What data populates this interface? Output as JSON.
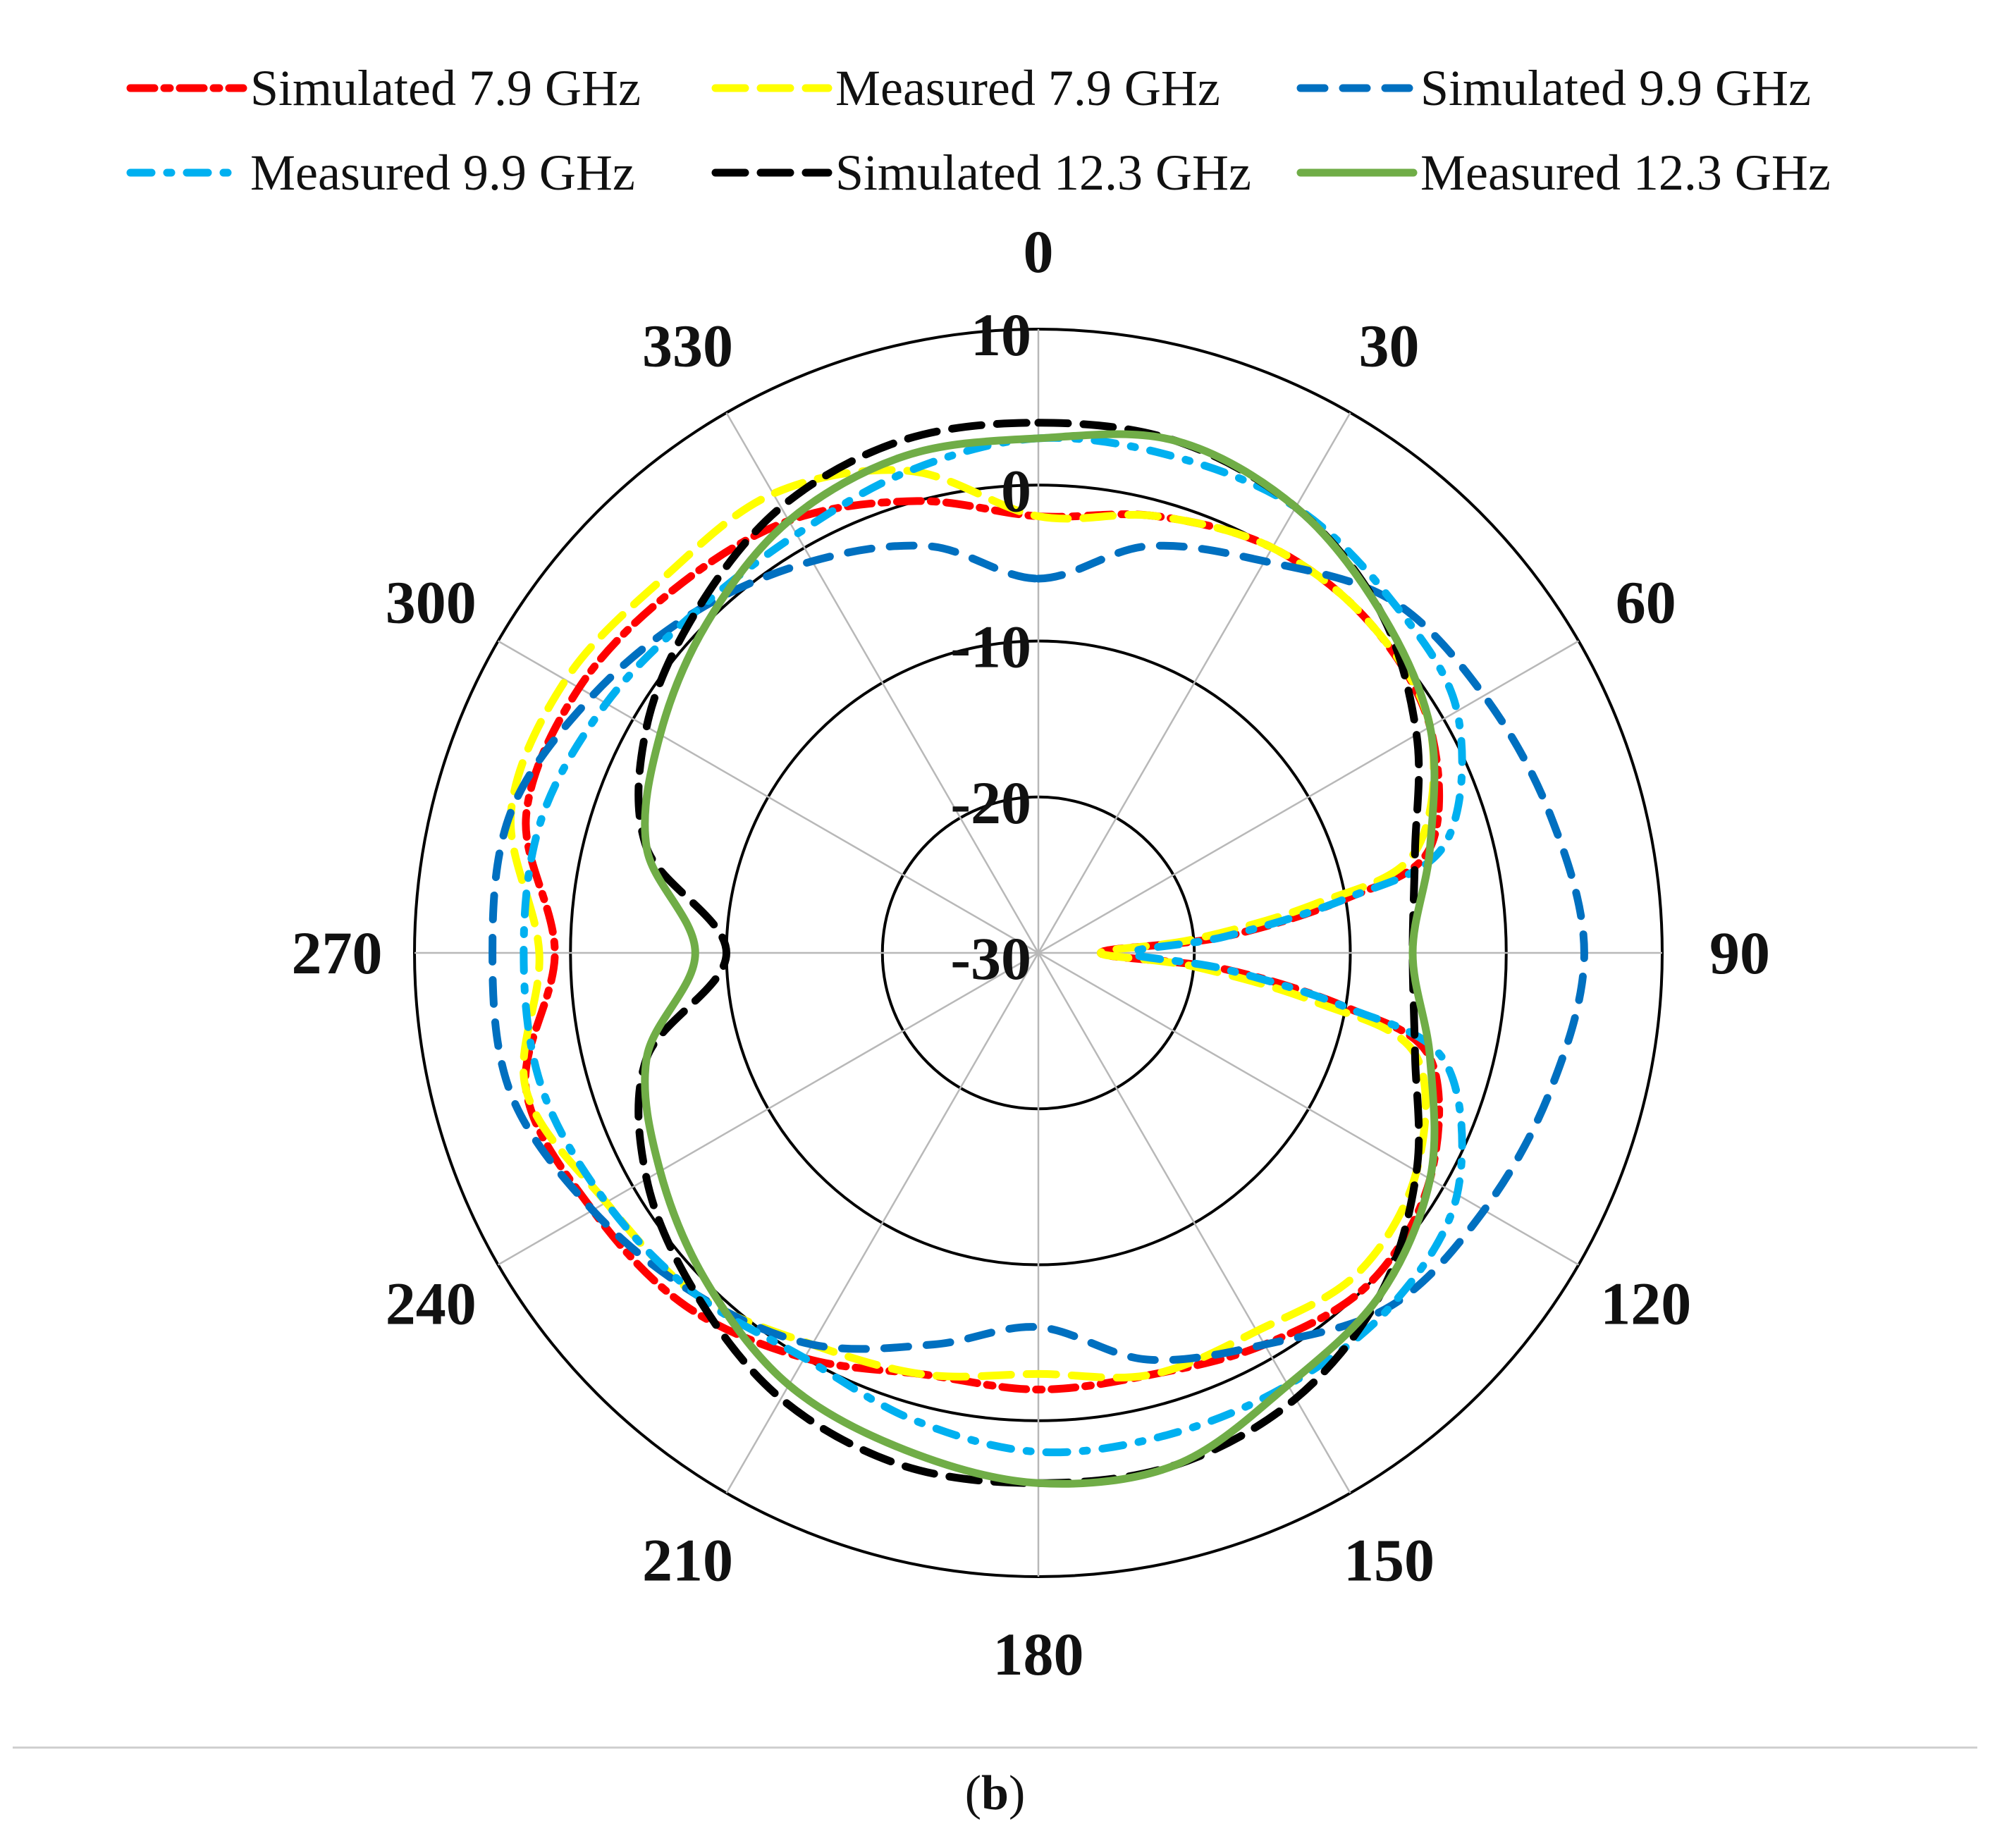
{
  "caption": {
    "open": "(",
    "letter": "b",
    "close": ")"
  },
  "chart_data": {
    "type": "polar-line",
    "title": "",
    "angle_labels": [
      "0",
      "30",
      "60",
      "90",
      "120",
      "150",
      "180",
      "210",
      "240",
      "270",
      "300",
      "330"
    ],
    "angles_deg": [
      0,
      30,
      60,
      90,
      120,
      150,
      180,
      210,
      240,
      270,
      300,
      330
    ],
    "radial_labels": [
      "10",
      "0",
      "-10",
      "-20",
      "-30"
    ],
    "radial_values": [
      10,
      0,
      -10,
      -20,
      -30
    ],
    "radial_range": [
      -30,
      10
    ],
    "unit_hint": "",
    "legend_position": "top",
    "series": [
      {
        "name": "Simulated 7.9 GHz",
        "color": "#ff0000",
        "dash": "long-dash-dot",
        "angles": [
          0,
          15,
          30,
          45,
          60,
          75,
          80,
          85,
          90,
          95,
          100,
          105,
          120,
          135,
          150,
          165,
          180,
          195,
          210,
          225,
          240,
          255,
          270,
          285,
          300,
          315,
          330,
          345
        ],
        "values": [
          -2,
          -1,
          0,
          0,
          -1,
          -4,
          -10,
          -18,
          -26,
          -18,
          -10,
          -4,
          -1,
          0,
          -1,
          -2,
          -2,
          -2,
          0,
          2,
          3,
          4,
          1,
          4,
          4,
          3,
          2,
          0
        ]
      },
      {
        "name": "Measured 7.9 GHz",
        "color": "#ffff00",
        "dash": "long-dash",
        "angles": [
          0,
          15,
          30,
          45,
          60,
          75,
          80,
          85,
          90,
          95,
          100,
          105,
          120,
          135,
          150,
          165,
          180,
          195,
          210,
          225,
          240,
          255,
          270,
          285,
          300,
          315,
          330,
          345
        ],
        "values": [
          -2,
          -1,
          0,
          0,
          -1,
          -5,
          -12,
          -20,
          -26,
          -20,
          -12,
          -5,
          -2,
          -1,
          -2,
          -2,
          -3,
          -2,
          -1,
          1,
          2,
          4,
          2,
          5,
          5,
          4,
          4,
          2
        ]
      },
      {
        "name": "Simulated 9.9 GHz",
        "color": "#0070c0",
        "dash": "dash",
        "angles": [
          0,
          15,
          30,
          45,
          60,
          75,
          90,
          105,
          120,
          135,
          150,
          165,
          180,
          195,
          210,
          225,
          240,
          255,
          270,
          285,
          300,
          315,
          330,
          345
        ],
        "values": [
          -6,
          -3,
          -1,
          2,
          3,
          4,
          5,
          4,
          3,
          2,
          -1,
          -3,
          -6,
          -4,
          -1,
          1,
          3,
          5,
          5,
          5,
          3,
          1,
          -1,
          -3
        ]
      },
      {
        "name": "Measured 9.9 GHz",
        "color": "#00b0f0",
        "dash": "dash-dot",
        "angles": [
          0,
          15,
          30,
          45,
          60,
          75,
          80,
          85,
          90,
          95,
          100,
          105,
          120,
          135,
          150,
          165,
          180,
          195,
          210,
          225,
          240,
          255,
          270,
          285,
          300,
          315,
          330,
          345
        ],
        "values": [
          3,
          3,
          3,
          2,
          1,
          -3,
          -10,
          -18,
          -24,
          -18,
          -10,
          -3,
          1,
          2,
          2,
          2,
          2,
          1,
          0,
          1,
          2,
          3,
          3,
          3,
          2,
          1,
          1,
          2
        ]
      },
      {
        "name": "Simulated 12.3 GHz",
        "color": "#000000",
        "dash": "long-dash",
        "angles": [
          0,
          15,
          30,
          45,
          60,
          75,
          90,
          105,
          120,
          135,
          150,
          165,
          180,
          195,
          210,
          225,
          240,
          255,
          270,
          285,
          300,
          315,
          330,
          345
        ],
        "values": [
          4,
          4,
          3,
          1,
          -2,
          -5,
          -6,
          -5,
          -2,
          1,
          3,
          4,
          4,
          4,
          3,
          1,
          -1,
          -4,
          -10,
          -4,
          -1,
          1,
          3,
          4
        ]
      },
      {
        "name": "Measured 12.3 GHz",
        "color": "#70ad47",
        "dash": "solid",
        "angles": [
          0,
          15,
          30,
          45,
          60,
          75,
          90,
          105,
          120,
          135,
          150,
          165,
          180,
          195,
          210,
          225,
          240,
          255,
          270,
          285,
          300,
          315,
          330,
          345
        ],
        "values": [
          3,
          4,
          3,
          1,
          -1,
          -4,
          -6,
          -4,
          -1,
          1,
          2,
          4,
          4,
          3,
          2,
          0,
          -2,
          -4,
          -8,
          -4,
          -2,
          0,
          2,
          3
        ]
      }
    ]
  }
}
